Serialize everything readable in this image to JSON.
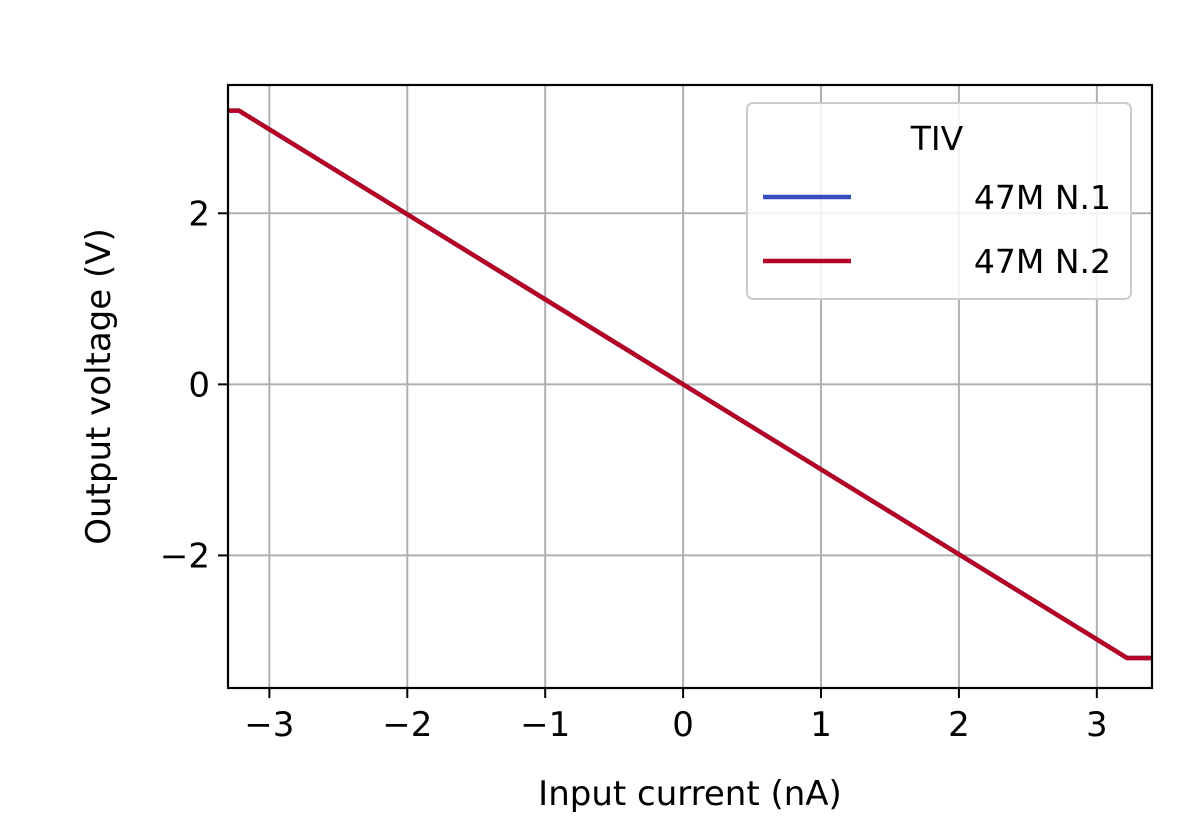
{
  "chart_data": {
    "type": "line",
    "title": "",
    "xlabel": "Input current (nA)",
    "ylabel": "Output voltage (V)",
    "xlim": [
      -3.3,
      3.4
    ],
    "ylim": [
      -3.55,
      3.5
    ],
    "xticks": [
      {
        "value": -3,
        "label": "−3"
      },
      {
        "value": -2,
        "label": "−2"
      },
      {
        "value": -1,
        "label": "−1"
      },
      {
        "value": 0,
        "label": "0"
      },
      {
        "value": 1,
        "label": "1"
      },
      {
        "value": 2,
        "label": "2"
      },
      {
        "value": 3,
        "label": "3"
      }
    ],
    "yticks": [
      {
        "value": -2,
        "label": "−2"
      },
      {
        "value": 0,
        "label": "0"
      },
      {
        "value": 2,
        "label": "2"
      }
    ],
    "grid": true,
    "legend": {
      "title": "TIV",
      "placement": "upper-right"
    },
    "series": [
      {
        "name": "47M N.1",
        "color": "#3b4cc0",
        "x": [
          -3.3,
          -3.22,
          3.22,
          3.4
        ],
        "y": [
          3.2,
          3.2,
          -3.2,
          -3.2
        ]
      },
      {
        "name": "47M N.2",
        "color": "#b40426",
        "x": [
          -3.3,
          -3.22,
          3.22,
          3.4
        ],
        "y": [
          3.2,
          3.2,
          -3.2,
          -3.2
        ]
      }
    ]
  }
}
